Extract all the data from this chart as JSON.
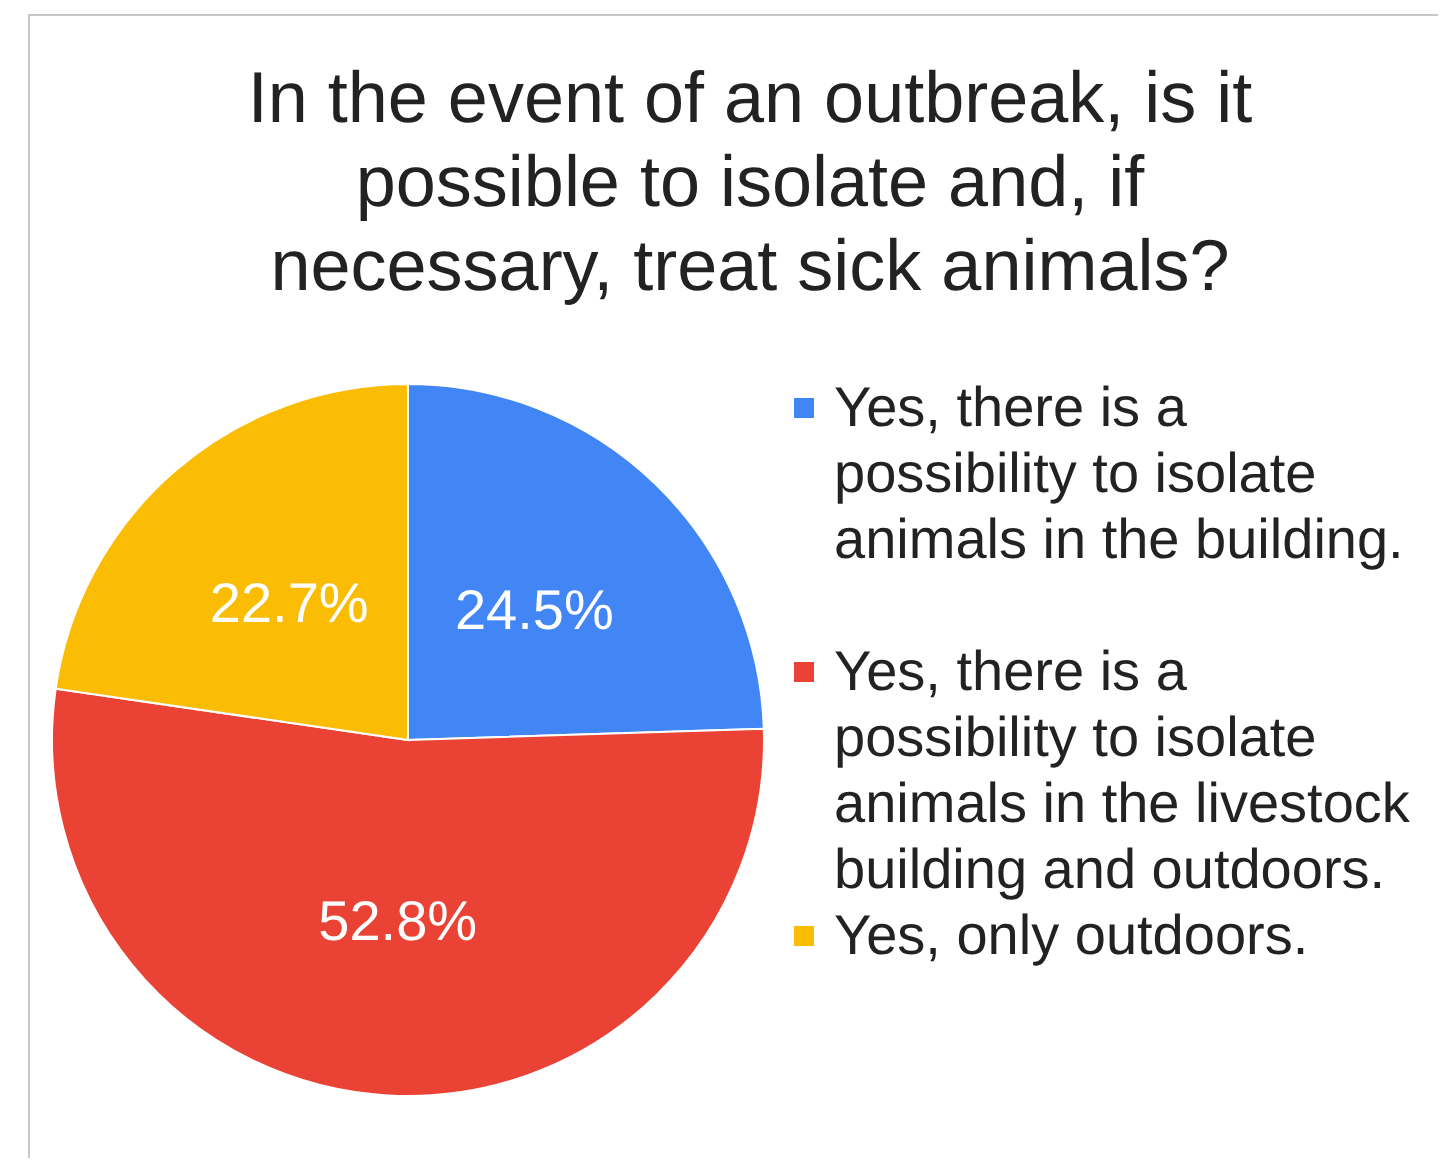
{
  "chart_data": {
    "type": "pie",
    "title": "In the event of an outbreak, is it possible to isolate and, if necessary, treat sick animals?",
    "categories": [
      "Yes, there is a possibility to isolate animals in the building.",
      "Yes, there is a possibility to isolate animals in the livestock building and outdoors.",
      "Yes, only outdoors."
    ],
    "values": [
      24.5,
      52.8,
      22.7
    ],
    "colors": [
      "#4285f4",
      "#ea4335",
      "#fbbc04"
    ],
    "value_labels": [
      "24.5%",
      "52.8%",
      "22.7%"
    ],
    "legend": "right"
  }
}
